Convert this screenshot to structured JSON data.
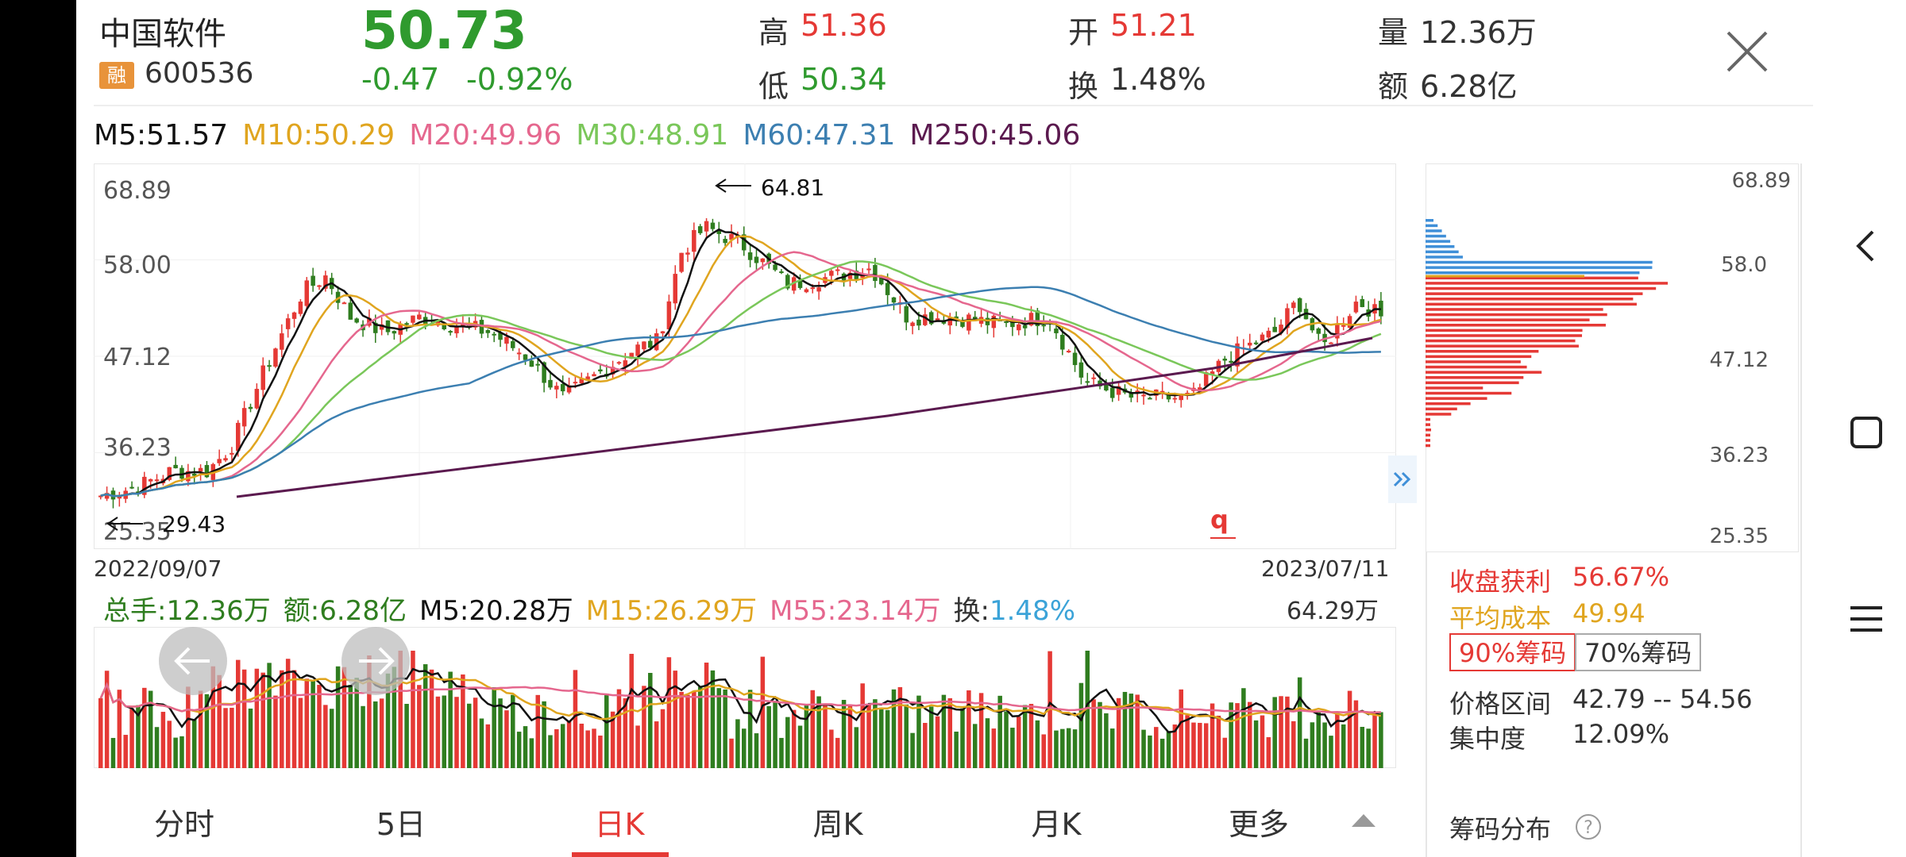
{
  "stock": {
    "name": "中国软件",
    "tag": "融",
    "code": "600536",
    "price": "50.73",
    "change": "-0.47",
    "change_pct": "-0.92%",
    "stats": {
      "high_label": "高",
      "high": "51.36",
      "low_label": "低",
      "low": "50.34",
      "open_label": "开",
      "open": "51.21",
      "turnover_label": "换",
      "turnover": "1.48%",
      "volume_label": "量",
      "volume": "12.36万",
      "amount_label": "额",
      "amount": "6.28亿"
    }
  },
  "ma": {
    "m5": "M5:51.57",
    "m10": "M10:50.29",
    "m20": "M20:49.96",
    "m30": "M30:48.91",
    "m60": "M60:47.31",
    "m250": "M250:45.06"
  },
  "colors": {
    "up": "#e53935",
    "down": "#2f7d1f",
    "m5": "#111111",
    "m10": "#e0a51f",
    "m20": "#e5678e",
    "m30": "#7ac75a",
    "m60": "#3c7fb1",
    "m250": "#5b1a4f",
    "chip_profit": "#e53935",
    "chip_loss": "#3f8fd8",
    "accent": "#e53935"
  },
  "kline": {
    "y_ticks": [
      "68.89",
      "58.00",
      "47.12",
      "36.23",
      "25.35"
    ],
    "high_mark": "64.81",
    "low_mark": "29.43",
    "date_start": "2022/09/07",
    "date_end": "2023/07/11",
    "expand_icon": "double-chevron-right-icon"
  },
  "volume": {
    "total": "总手:12.36万",
    "amount": "额:6.28亿",
    "m5": "M5:20.28万",
    "m15": "M15:26.29万",
    "m55": "M55:23.14万",
    "turnover_label": "换:",
    "turnover": "1.48%",
    "max": "64.29万"
  },
  "chips": {
    "y_ticks": [
      "68.89",
      "58.0",
      "47.12",
      "36.23",
      "25.35"
    ],
    "profit_label": "收盘获利",
    "profit": "56.67%",
    "avg_cost_label": "平均成本",
    "avg_cost": "49.94",
    "btn_90": "90%筹码",
    "btn_70": "70%筹码",
    "range_label": "价格区间",
    "range": "42.79 -- 54.56",
    "concentration_label": "集中度",
    "concentration": "12.09%",
    "footer": "筹码分布"
  },
  "tabs": [
    "分时",
    "5日",
    "日K",
    "周K",
    "月K",
    "更多"
  ],
  "active_tab": "日K"
}
